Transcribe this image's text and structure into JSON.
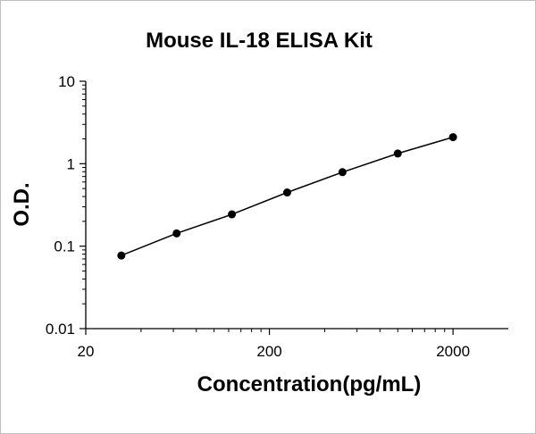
{
  "chart_data": {
    "type": "scatter",
    "title": "Mouse IL-18 ELISA Kit",
    "xlabel": "Concentration(pg/mL)",
    "ylabel": "O.D.",
    "x_scale": "log",
    "y_scale": "log",
    "xlim": [
      20,
      4000
    ],
    "ylim": [
      0.01,
      10
    ],
    "x_ticks": [
      20,
      200,
      2000
    ],
    "x_tick_labels": [
      "20",
      "200",
      "2000"
    ],
    "y_ticks": [
      0.01,
      0.1,
      1,
      10
    ],
    "y_tick_labels": [
      "0.01",
      "0.1",
      "1",
      "10"
    ],
    "grid": false,
    "legend": "none",
    "series": [
      {
        "x": [
          31.25,
          62.5,
          125,
          250,
          500,
          1000,
          2000
        ],
        "y": [
          0.077,
          0.143,
          0.243,
          0.448,
          0.79,
          1.33,
          2.1
        ],
        "trendline": true
      }
    ],
    "colors": {
      "marker": "#000000",
      "line": "#000000"
    }
  }
}
